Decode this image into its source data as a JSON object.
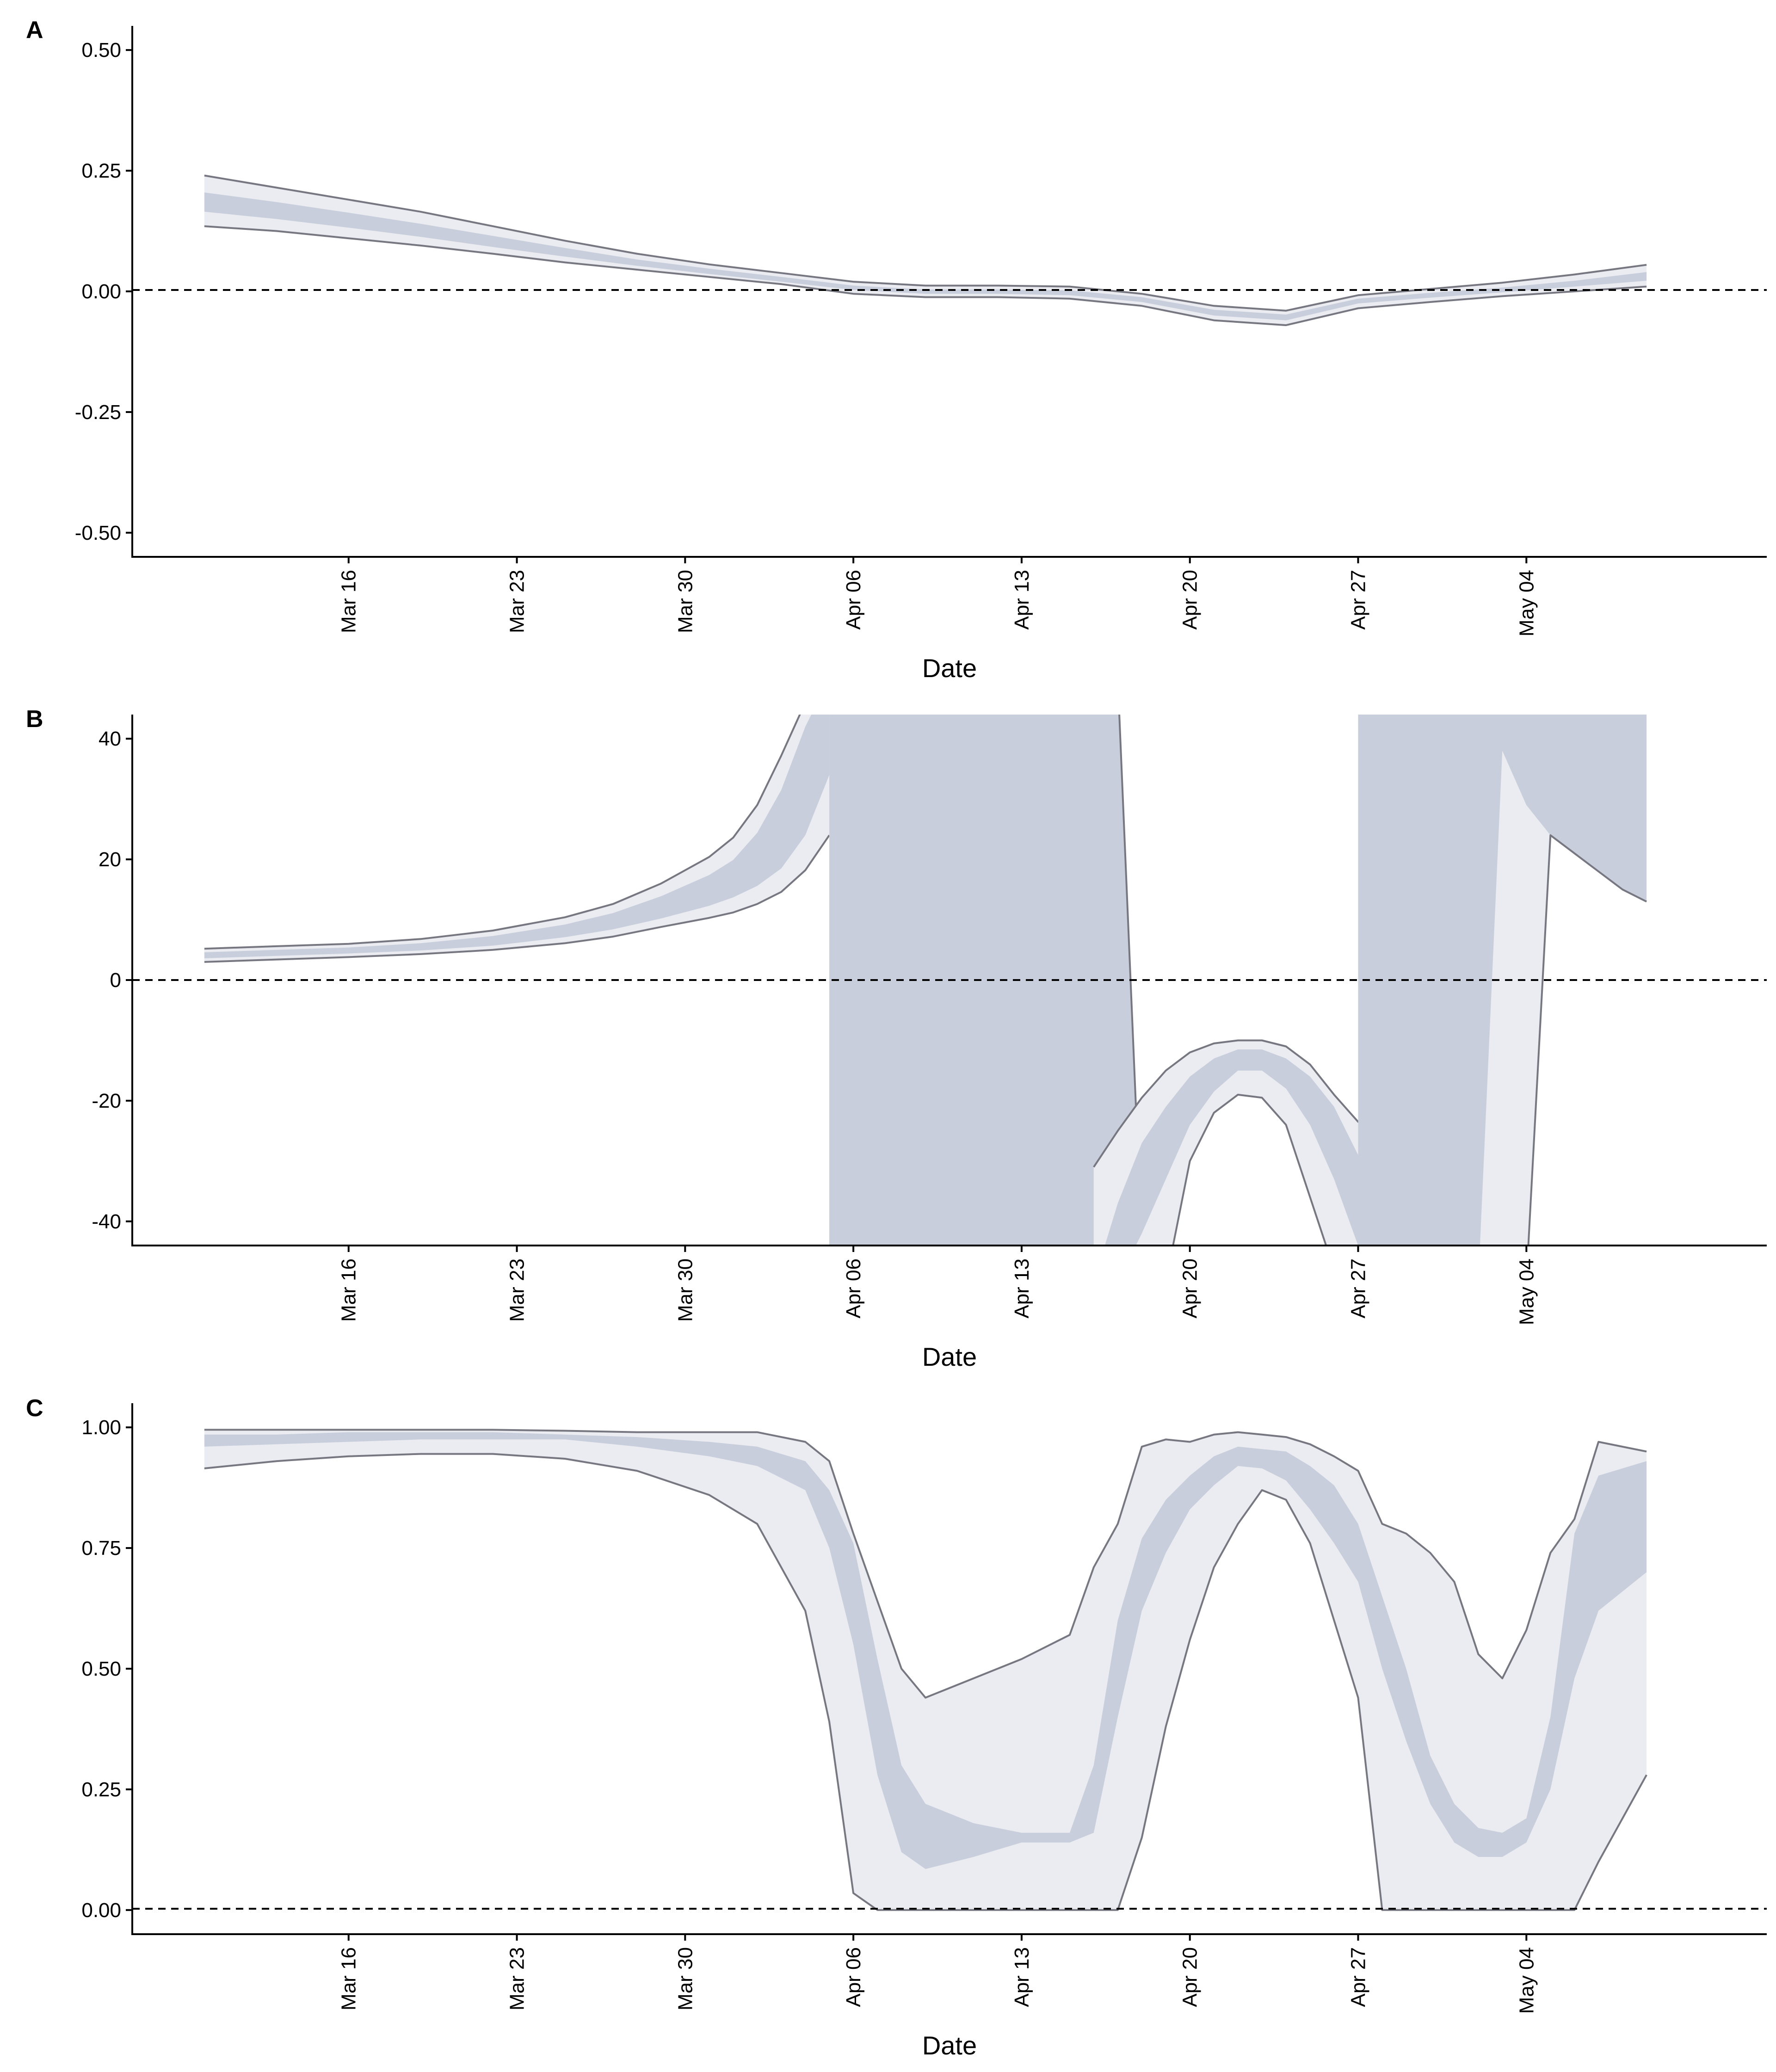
{
  "colors": {
    "band_outer": "#ebecf1",
    "band_mid": "#c8cedb",
    "band_inner": "#ebecf1",
    "bound_line": "#767780",
    "zero_line": "#000000"
  },
  "chart_data": [
    {
      "panel": "A",
      "type": "area",
      "xlabel": "Date",
      "ylabel": "",
      "ylim": [
        -0.55,
        0.55
      ],
      "yticks": [
        -0.5,
        -0.25,
        0.0,
        0.25,
        0.5
      ],
      "ytick_labels": [
        "-0.50",
        "-0.25",
        "0.00",
        "0.25",
        "0.50"
      ],
      "xlim": [
        "2020-03-07",
        "2020-05-14"
      ],
      "xticks": [
        "2020-03-16",
        "2020-03-23",
        "2020-03-30",
        "2020-04-06",
        "2020-04-13",
        "2020-04-20",
        "2020-04-27",
        "2020-05-04"
      ],
      "xtick_labels": [
        "Mar 16",
        "Mar 23",
        "Mar 30",
        "Apr 06",
        "Apr 13",
        "Apr 20",
        "Apr 27",
        "May 04"
      ],
      "reference_line": 0,
      "grid": false,
      "x": [
        "2020-03-10",
        "2020-03-13",
        "2020-03-16",
        "2020-03-19",
        "2020-03-22",
        "2020-03-25",
        "2020-03-28",
        "2020-03-31",
        "2020-04-03",
        "2020-04-06",
        "2020-04-09",
        "2020-04-12",
        "2020-04-15",
        "2020-04-18",
        "2020-04-21",
        "2020-04-24",
        "2020-04-27",
        "2020-04-30",
        "2020-05-03",
        "2020-05-06",
        "2020-05-09"
      ],
      "upper": [
        0.24,
        0.215,
        0.19,
        0.165,
        0.135,
        0.105,
        0.078,
        0.056,
        0.038,
        0.02,
        0.012,
        0.012,
        0.01,
        -0.005,
        -0.03,
        -0.04,
        -0.008,
        0.005,
        0.018,
        0.035,
        0.055
      ],
      "upper_mid": [
        0.205,
        0.185,
        0.163,
        0.14,
        0.115,
        0.09,
        0.066,
        0.047,
        0.03,
        0.012,
        0.004,
        0.004,
        0.002,
        -0.012,
        -0.038,
        -0.048,
        -0.015,
        -0.003,
        0.008,
        0.022,
        0.04
      ],
      "lower_mid": [
        0.165,
        0.15,
        0.132,
        0.113,
        0.092,
        0.072,
        0.053,
        0.036,
        0.02,
        0.003,
        -0.005,
        -0.005,
        -0.008,
        -0.022,
        -0.05,
        -0.06,
        -0.025,
        -0.013,
        -0.002,
        0.01,
        0.022
      ],
      "lower": [
        0.135,
        0.125,
        0.11,
        0.095,
        0.078,
        0.06,
        0.045,
        0.03,
        0.015,
        -0.005,
        -0.012,
        -0.012,
        -0.015,
        -0.03,
        -0.06,
        -0.07,
        -0.035,
        -0.022,
        -0.01,
        0.0,
        0.01
      ]
    },
    {
      "panel": "B",
      "type": "area",
      "xlabel": "Date",
      "ylabel": "",
      "ylim": [
        -44,
        44
      ],
      "yticks": [
        -40,
        -20,
        0,
        20,
        40
      ],
      "ytick_labels": [
        "-40",
        "-20",
        "0",
        "20",
        "40"
      ],
      "xlim": [
        "2020-03-07",
        "2020-05-14"
      ],
      "xticks": [
        "2020-03-16",
        "2020-03-23",
        "2020-03-30",
        "2020-04-06",
        "2020-04-13",
        "2020-04-20",
        "2020-04-27",
        "2020-05-04"
      ],
      "xtick_labels": [
        "Mar 16",
        "Mar 23",
        "Mar 30",
        "Apr 06",
        "Apr 13",
        "Apr 20",
        "Apr 27",
        "May 04"
      ],
      "reference_line": 0,
      "grid": false,
      "segments": [
        {
          "x": [
            "2020-03-10",
            "2020-03-13",
            "2020-03-16",
            "2020-03-19",
            "2020-03-22",
            "2020-03-25",
            "2020-03-27",
            "2020-03-29",
            "2020-03-31",
            "2020-04-01",
            "2020-04-02",
            "2020-04-03",
            "2020-04-04",
            "2020-04-05"
          ],
          "upper": [
            5.2,
            5.6,
            6.0,
            6.8,
            8.2,
            10.4,
            12.6,
            16.0,
            20.4,
            23.6,
            29.0,
            37.2,
            46,
            50
          ],
          "upper_mid": [
            4.6,
            5.0,
            5.4,
            6.1,
            7.3,
            9.2,
            11.1,
            13.9,
            17.4,
            19.9,
            24.4,
            31.5,
            42,
            50
          ],
          "lower_mid": [
            3.6,
            4.0,
            4.4,
            4.9,
            5.7,
            7.1,
            8.4,
            10.2,
            12.3,
            13.7,
            15.6,
            18.5,
            24.0,
            34.0
          ],
          "lower": [
            3.0,
            3.4,
            3.8,
            4.3,
            5.0,
            6.1,
            7.2,
            8.8,
            10.3,
            11.2,
            12.6,
            14.6,
            18.2,
            24.0
          ]
        },
        {
          "x": [
            "2020-04-05",
            "2020-04-06",
            "2020-04-07",
            "2020-04-08",
            "2020-04-09",
            "2020-04-10",
            "2020-04-11",
            "2020-04-12",
            "2020-04-13",
            "2020-04-14",
            "2020-04-15",
            "2020-04-16",
            "2020-04-17",
            "2020-04-18"
          ],
          "upper": [
            50,
            50,
            50,
            50,
            50,
            50,
            50,
            50,
            50,
            50,
            50,
            50,
            50,
            -44
          ],
          "upper_mid": [
            50,
            50,
            50,
            50,
            50,
            50,
            50,
            50,
            50,
            50,
            50,
            50,
            50,
            -44
          ],
          "lower_mid": [
            -50,
            -50,
            -50,
            -50,
            -50,
            -50,
            -50,
            -50,
            -50,
            -50,
            -50,
            -50,
            -50,
            -50
          ],
          "lower": [
            -50,
            -50,
            -50,
            -50,
            -50,
            -50,
            -50,
            -50,
            -50,
            -50,
            -50,
            -50,
            -50,
            -50
          ]
        },
        {
          "x": [
            "2020-04-16",
            "2020-04-17",
            "2020-04-18",
            "2020-04-19",
            "2020-04-20",
            "2020-04-21",
            "2020-04-22",
            "2020-04-23",
            "2020-04-24",
            "2020-04-25",
            "2020-04-26",
            "2020-04-27",
            "2020-04-28",
            "2020-04-29",
            "2020-04-30",
            "2020-05-01",
            "2020-05-02",
            "2020-05-03"
          ],
          "upper": [
            -31,
            -25,
            -19.5,
            -15.0,
            -12.0,
            -10.5,
            -10.0,
            -10.0,
            -11.0,
            -14.0,
            -19.0,
            -23.5,
            -25.0,
            -26.0,
            -28.0,
            -32.0,
            -40.0,
            -46
          ],
          "upper_mid": [
            -50,
            -37,
            -27,
            -21.0,
            -16.0,
            -13.0,
            -11.5,
            -11.5,
            -13.0,
            -16.0,
            -21.0,
            -29.0,
            -34.0,
            -38.0,
            -40.0,
            -44,
            -50,
            -50
          ],
          "lower_mid": [
            -50,
            -50,
            -42,
            -33.0,
            -24.0,
            -18.5,
            -15.0,
            -15.0,
            -18.0,
            -24.0,
            -33.0,
            -44,
            -50,
            -50,
            -50,
            -50,
            -50,
            -50
          ],
          "lower": [
            -50,
            -50,
            -50,
            -50,
            -30.0,
            -22.0,
            -19.0,
            -19.5,
            -24.0,
            -36.0,
            -48,
            -50,
            -50,
            -50,
            -50,
            -50,
            -50,
            -50
          ]
        },
        {
          "x": [
            "2020-04-27",
            "2020-04-28",
            "2020-04-29",
            "2020-04-30",
            "2020-05-01",
            "2020-05-02",
            "2020-05-03",
            "2020-05-04",
            "2020-05-05",
            "2020-05-06",
            "2020-05-07",
            "2020-05-08",
            "2020-05-09"
          ],
          "upper": [
            50,
            50,
            50,
            50,
            50,
            50,
            50,
            50,
            50,
            50,
            50,
            50,
            50
          ],
          "upper_mid": [
            50,
            50,
            50,
            50,
            50,
            50,
            50,
            50,
            50,
            50,
            50,
            50,
            50
          ],
          "lower_mid": [
            -50,
            -50,
            -50,
            -50,
            -50,
            -50,
            38.0,
            29.0,
            24.0,
            21.0,
            18.0,
            15.0,
            13.0
          ],
          "lower": [
            -50,
            -50,
            -50,
            -50,
            -50,
            -50,
            -50,
            -50,
            24.0,
            21.0,
            18.0,
            15.0,
            13.0
          ]
        }
      ]
    },
    {
      "panel": "C",
      "type": "area",
      "xlabel": "Date",
      "ylabel": "",
      "ylim": [
        -0.05,
        1.05
      ],
      "yticks": [
        0.0,
        0.25,
        0.5,
        0.75,
        1.0
      ],
      "ytick_labels": [
        "0.00",
        "0.25",
        "0.50",
        "0.75",
        "1.00"
      ],
      "xlim": [
        "2020-03-07",
        "2020-05-14"
      ],
      "xticks": [
        "2020-03-16",
        "2020-03-23",
        "2020-03-30",
        "2020-04-06",
        "2020-04-13",
        "2020-04-20",
        "2020-04-27",
        "2020-05-04"
      ],
      "xtick_labels": [
        "Mar 16",
        "Mar 23",
        "Mar 30",
        "Apr 06",
        "Apr 13",
        "Apr 20",
        "Apr 27",
        "May 04"
      ],
      "reference_line": 0,
      "grid": false,
      "x": [
        "2020-03-10",
        "2020-03-13",
        "2020-03-16",
        "2020-03-19",
        "2020-03-22",
        "2020-03-25",
        "2020-03-28",
        "2020-03-31",
        "2020-04-02",
        "2020-04-04",
        "2020-04-05",
        "2020-04-06",
        "2020-04-07",
        "2020-04-08",
        "2020-04-09",
        "2020-04-11",
        "2020-04-13",
        "2020-04-15",
        "2020-04-16",
        "2020-04-17",
        "2020-04-18",
        "2020-04-19",
        "2020-04-20",
        "2020-04-21",
        "2020-04-22",
        "2020-04-23",
        "2020-04-24",
        "2020-04-25",
        "2020-04-26",
        "2020-04-27",
        "2020-04-28",
        "2020-04-29",
        "2020-04-30",
        "2020-05-01",
        "2020-05-02",
        "2020-05-03",
        "2020-05-04",
        "2020-05-05",
        "2020-05-06",
        "2020-05-07",
        "2020-05-09"
      ],
      "upper": [
        0.995,
        0.995,
        0.995,
        0.995,
        0.995,
        0.993,
        0.99,
        0.99,
        0.99,
        0.97,
        0.93,
        0.78,
        0.64,
        0.5,
        0.44,
        0.48,
        0.52,
        0.57,
        0.71,
        0.8,
        0.96,
        0.975,
        0.97,
        0.985,
        0.99,
        0.985,
        0.98,
        0.965,
        0.94,
        0.91,
        0.8,
        0.78,
        0.74,
        0.68,
        0.53,
        0.48,
        0.58,
        0.74,
        0.81,
        0.97,
        0.95
      ],
      "upper_mid": [
        0.985,
        0.985,
        0.99,
        0.99,
        0.99,
        0.985,
        0.98,
        0.97,
        0.96,
        0.93,
        0.87,
        0.76,
        0.52,
        0.3,
        0.22,
        0.18,
        0.16,
        0.16,
        0.3,
        0.6,
        0.77,
        0.85,
        0.9,
        0.94,
        0.96,
        0.955,
        0.95,
        0.92,
        0.88,
        0.8,
        0.65,
        0.5,
        0.32,
        0.22,
        0.17,
        0.16,
        0.19,
        0.4,
        0.78,
        0.9,
        0.93
      ],
      "lower_mid": [
        0.96,
        0.965,
        0.97,
        0.975,
        0.975,
        0.975,
        0.96,
        0.94,
        0.92,
        0.87,
        0.75,
        0.55,
        0.28,
        0.12,
        0.085,
        0.11,
        0.14,
        0.14,
        0.16,
        0.4,
        0.62,
        0.74,
        0.83,
        0.88,
        0.92,
        0.915,
        0.89,
        0.83,
        0.76,
        0.68,
        0.5,
        0.35,
        0.22,
        0.14,
        0.11,
        0.11,
        0.14,
        0.25,
        0.48,
        0.62,
        0.7
      ],
      "lower": [
        0.915,
        0.93,
        0.94,
        0.945,
        0.945,
        0.935,
        0.91,
        0.86,
        0.8,
        0.62,
        0.39,
        0.035,
        0.0,
        0.0,
        0.0,
        0.0,
        0.0,
        0.0,
        0.0,
        0.0,
        0.15,
        0.38,
        0.56,
        0.71,
        0.8,
        0.87,
        0.85,
        0.76,
        0.6,
        0.44,
        0.0,
        0.0,
        0.0,
        0.0,
        0.0,
        0.0,
        0.0,
        0.0,
        0.0,
        0.1,
        0.28
      ]
    }
  ]
}
